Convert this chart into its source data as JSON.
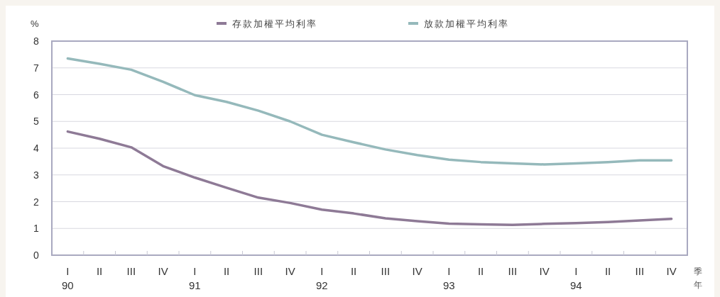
{
  "chart_data": {
    "type": "line",
    "ylabel": "%",
    "xlabel": "季年",
    "categories": [
      "I\n90",
      "II",
      "III",
      "IV",
      "I\n91",
      "II",
      "III",
      "IV",
      "I\n92",
      "II",
      "III",
      "IV",
      "I\n93",
      "II",
      "III",
      "IV",
      "I\n94",
      "II",
      "III",
      "IV"
    ],
    "series": [
      {
        "name": "存款加權平均利率",
        "color": "#8e7a96",
        "values": [
          4.62,
          4.35,
          4.03,
          3.33,
          2.9,
          2.52,
          2.15,
          1.95,
          1.7,
          1.56,
          1.38,
          1.27,
          1.18,
          1.15,
          1.13,
          1.17,
          1.2,
          1.24,
          1.3,
          1.36
        ]
      },
      {
        "name": "放款加權平均利率",
        "color": "#95b9bb",
        "values": [
          7.35,
          7.15,
          6.93,
          6.48,
          5.98,
          5.73,
          5.4,
          5.0,
          4.5,
          4.22,
          3.95,
          3.74,
          3.57,
          3.48,
          3.43,
          3.39,
          3.43,
          3.48,
          3.54,
          3.54
        ]
      }
    ],
    "ylim": [
      0,
      8
    ],
    "yticks": [
      0,
      1,
      2,
      3,
      4,
      5,
      6,
      7,
      8
    ],
    "grid": "y",
    "legend": "top",
    "marker": "none",
    "line_style": "solid"
  }
}
